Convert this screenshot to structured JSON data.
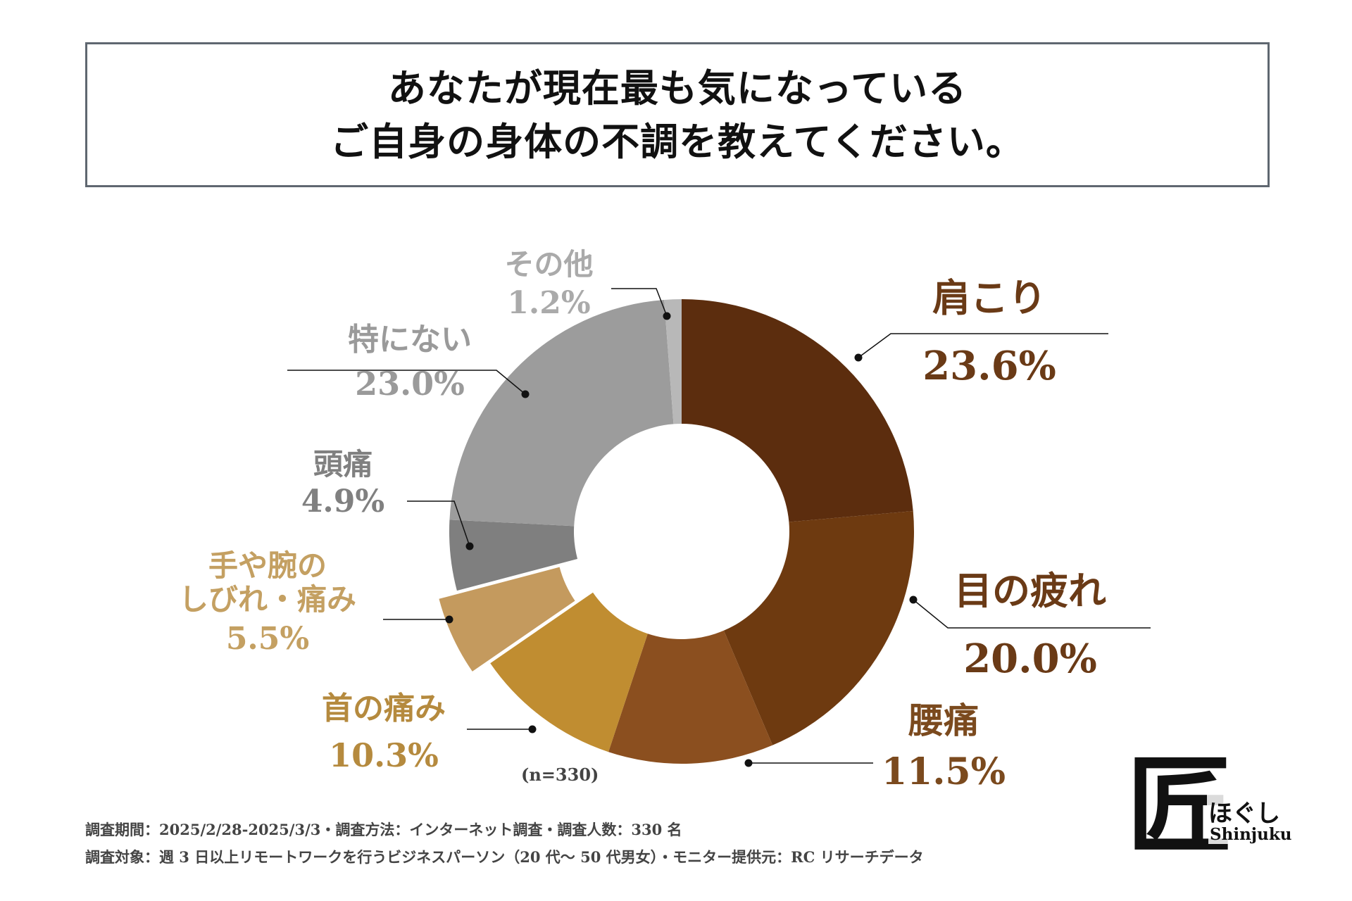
{
  "header": {
    "title_line1": "あなたが現在最も気になっている",
    "title_line2": "ご自身の身体の不調を教えてください。"
  },
  "chart_data": {
    "type": "pie",
    "donut": true,
    "sample_label": "(n=330)",
    "slices": [
      {
        "name": "肩こり",
        "value": 23.6,
        "label": "23.6%",
        "color": "#5c2d0e",
        "label_color": "#6a3a16"
      },
      {
        "name": "目の疲れ",
        "value": 20.0,
        "label": "20.0%",
        "color": "#6e3a10",
        "label_color": "#6a3a16"
      },
      {
        "name": "腰痛",
        "value": 11.5,
        "label": "11.5%",
        "color": "#8b4f1f",
        "label_color": "#7b4a1e"
      },
      {
        "name": "首の痛み",
        "value": 10.3,
        "label": "10.3%",
        "color": "#c08d31",
        "label_color": "#b58a3e"
      },
      {
        "name": "手や腕のしびれ・痛み",
        "name_line1": "手や腕の",
        "name_line2": "しびれ・痛み",
        "value": 5.5,
        "label": "5.5%",
        "color": "#c49a5e",
        "label_color": "#c4a062",
        "exploded": true
      },
      {
        "name": "頭痛",
        "value": 4.9,
        "label": "4.9%",
        "color": "#7f7f7f",
        "label_color": "#808080"
      },
      {
        "name": "特にない",
        "value": 23.0,
        "label": "23.0%",
        "color": "#9c9c9c",
        "label_color": "#9a9a9a"
      },
      {
        "name": "その他",
        "value": 1.2,
        "label": "1.2%",
        "color": "#b8b8b8",
        "label_color": "#aaaaaa"
      }
    ]
  },
  "footer": {
    "line1": "調査期間：2025/2/28-2025/3/3・調査方法：インターネット調査・調査人数：330 名",
    "line2": "調査対象：週 3 日以上リモートワークを行うビジネスパーソン（20 代～ 50 代男女）・モニター提供元：RC リサーチデータ"
  },
  "logo": {
    "kanji": "匠",
    "kana": "ほぐし",
    "english": "Shinjuku"
  }
}
